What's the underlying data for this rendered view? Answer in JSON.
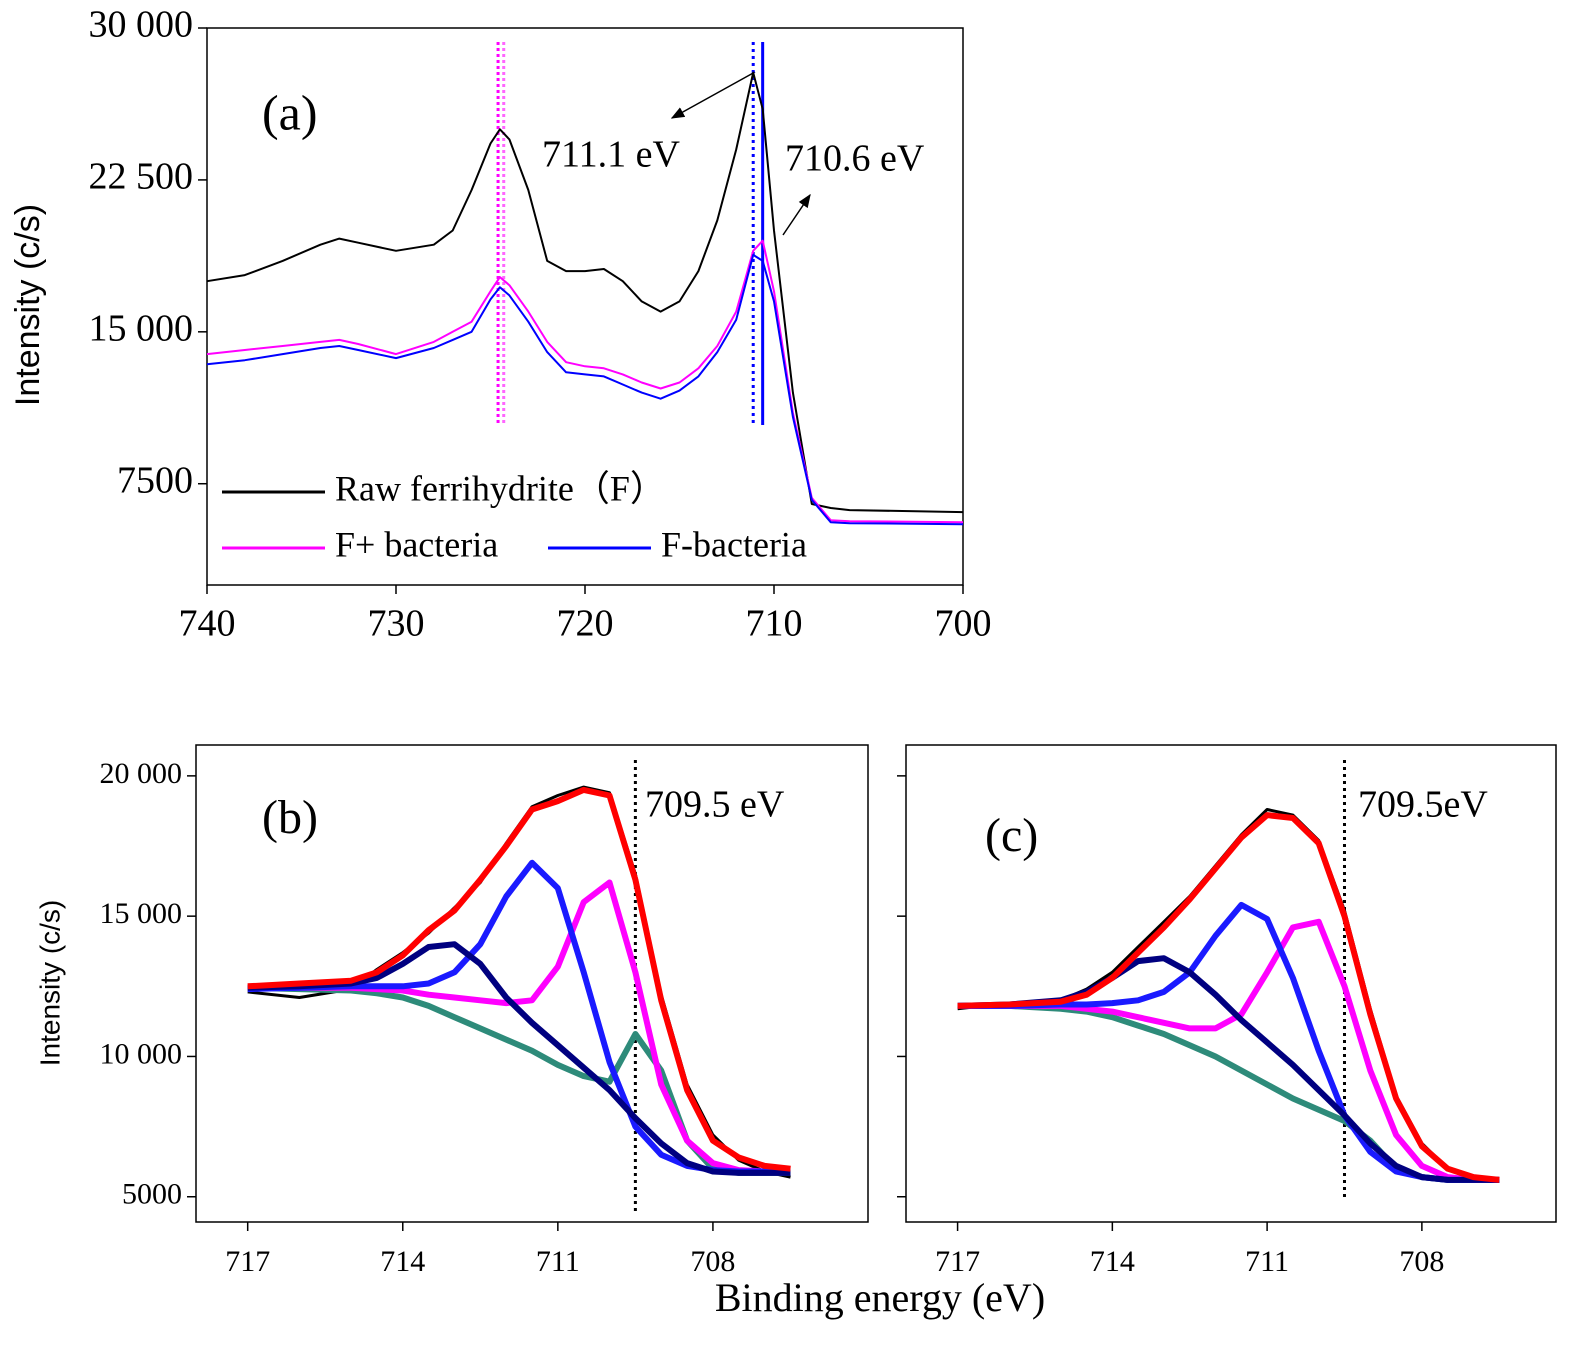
{
  "chart_data": [
    {
      "type": "line",
      "panel_label": "(a)",
      "ylabel": "Intensity (c/s)",
      "xlim": [
        740,
        700
      ],
      "xticks": [
        740,
        730,
        720,
        710,
        700
      ],
      "ylim": [
        2500,
        30000
      ],
      "yticks": [
        {
          "value": 7500,
          "label": "7500"
        },
        {
          "value": 15000,
          "label": "15 000"
        },
        {
          "value": 22500,
          "label": "22 500"
        },
        {
          "value": 30000,
          "label": "30 000"
        }
      ],
      "x": [
        740,
        738,
        736,
        734,
        733,
        732,
        730,
        728,
        727,
        726,
        725,
        724.5,
        724,
        723,
        722,
        721,
        720,
        719,
        718,
        717,
        716,
        715,
        714,
        713,
        712,
        711.1,
        710.6,
        710,
        709,
        708,
        707,
        706,
        700
      ],
      "series": [
        {
          "name": "Raw ferrihydrite（F）",
          "color": "#000000",
          "values": [
            17500,
            17800,
            18500,
            19300,
            19600,
            19400,
            19000,
            19300,
            20000,
            22000,
            24300,
            25000,
            24500,
            22000,
            18500,
            18000,
            18000,
            18100,
            17500,
            16500,
            16000,
            16500,
            18000,
            20500,
            24000,
            27800,
            26000,
            20000,
            12000,
            6500,
            6300,
            6200,
            6100
          ]
        },
        {
          "name": "F+ bacteria",
          "color": "#ff00ff",
          "values": [
            13900,
            14100,
            14300,
            14500,
            14600,
            14400,
            13900,
            14500,
            15000,
            15500,
            17000,
            17700,
            17300,
            16000,
            14500,
            13500,
            13300,
            13200,
            12900,
            12500,
            12200,
            12500,
            13200,
            14300,
            16000,
            19000,
            19500,
            17000,
            11000,
            6800,
            5700,
            5650,
            5600
          ]
        },
        {
          "name": "F-bacteria",
          "color": "#0000ff",
          "values": [
            13400,
            13600,
            13900,
            14200,
            14300,
            14100,
            13700,
            14200,
            14600,
            15000,
            16600,
            17200,
            16800,
            15500,
            14000,
            13000,
            12900,
            12800,
            12400,
            12000,
            11700,
            12100,
            12800,
            14000,
            15600,
            18800,
            18500,
            16500,
            10800,
            6700,
            5600,
            5550,
            5500
          ]
        }
      ],
      "vlines": [
        {
          "x": 724.6,
          "color": "#ff00ff",
          "dash": "3,3"
        },
        {
          "x": 724.3,
          "color": "#ff66ff",
          "dash": "3,3"
        },
        {
          "x": 711.1,
          "color": "#0000ff",
          "dash": "3,4"
        },
        {
          "x": 710.6,
          "color": "#0000ff",
          "dash": "none"
        }
      ],
      "annotations": [
        "711.1 eV",
        "710.6 eV"
      ]
    },
    {
      "type": "line",
      "panel_label": "(b)",
      "ylabel": "Intensity (c/s)",
      "xlabel": "Binding energy (eV)",
      "xlim": [
        718,
        705
      ],
      "xticks": [
        717,
        714,
        711,
        708
      ],
      "ylim": [
        4100,
        21100
      ],
      "yticks": [
        {
          "value": 5000,
          "label": "5000"
        },
        {
          "value": 10000,
          "label": "10 000"
        },
        {
          "value": 15000,
          "label": "15 000"
        },
        {
          "value": 20000,
          "label": "20 000"
        }
      ],
      "x": [
        717,
        716,
        715,
        714.5,
        714,
        713.5,
        713,
        712.5,
        712,
        711.5,
        711,
        710.5,
        710,
        709.5,
        709,
        708.5,
        708,
        707.5,
        707,
        706.5
      ],
      "series": [
        {
          "color": "#000000",
          "values": [
            12300,
            12100,
            12400,
            13100,
            13700,
            14400,
            15300,
            16200,
            17600,
            18900,
            19300,
            19600,
            19400,
            16500,
            12200,
            9000,
            7200,
            6300,
            5900,
            5700
          ]
        },
        {
          "color": "#2e8b7a",
          "values": [
            12450,
            12400,
            12350,
            12250,
            12100,
            11800,
            11400,
            11000,
            10600,
            10200,
            9700,
            9300,
            9100,
            10800,
            9500,
            7000,
            6000,
            5850,
            5850,
            5850
          ]
        },
        {
          "color": "#ff00ff",
          "values": [
            12450,
            12450,
            12450,
            12400,
            12350,
            12200,
            12100,
            12000,
            11900,
            12000,
            13200,
            15500,
            16200,
            13000,
            9000,
            7000,
            6200,
            5950,
            5900,
            5900
          ]
        },
        {
          "color": "#1a1aff",
          "values": [
            12400,
            12450,
            12500,
            12500,
            12500,
            12600,
            13000,
            14000,
            15700,
            16900,
            16000,
            13000,
            9800,
            7500,
            6500,
            6100,
            5950,
            5900,
            5900,
            5900
          ]
        },
        {
          "color": "#000080",
          "values": [
            12450,
            12500,
            12600,
            12800,
            13300,
            13900,
            14000,
            13300,
            12100,
            11200,
            10400,
            9600,
            8800,
            7800,
            6900,
            6200,
            5900,
            5850,
            5850,
            5850
          ]
        },
        {
          "color": "#ff0000",
          "values": [
            12500,
            12600,
            12700,
            13000,
            13600,
            14500,
            15200,
            16300,
            17500,
            18800,
            19100,
            19500,
            19300,
            16300,
            12000,
            8800,
            7000,
            6400,
            6100,
            6000
          ]
        }
      ],
      "vlines": [
        {
          "x": 709.5,
          "color": "#000000",
          "dash": "3,4"
        }
      ],
      "annotations": [
        "709.5 eV"
      ]
    },
    {
      "type": "line",
      "panel_label": "(c)",
      "show_ytick_labels": false,
      "xlim": [
        718,
        705.4
      ],
      "xticks": [
        717,
        714,
        711,
        708
      ],
      "ylim": [
        4100,
        21100
      ],
      "yticks": [
        5000,
        10000,
        15000,
        20000
      ],
      "x": [
        717,
        716,
        715,
        714.5,
        714,
        713.5,
        713,
        712.5,
        712,
        711.5,
        711,
        710.5,
        710,
        709.5,
        709,
        708.5,
        708,
        707.5,
        707,
        706.5
      ],
      "series": [
        {
          "color": "#000000",
          "values": [
            11700,
            11900,
            12000,
            12400,
            13000,
            13900,
            14800,
            15700,
            16800,
            17900,
            18800,
            18600,
            17700,
            15200,
            11700,
            8600,
            6900,
            6000,
            5700,
            5600
          ]
        },
        {
          "color": "#2e8b7a",
          "values": [
            11800,
            11800,
            11700,
            11600,
            11400,
            11100,
            10800,
            10400,
            10000,
            9500,
            9000,
            8500,
            8100,
            7700,
            7000,
            6000,
            5700,
            5600,
            5600,
            5600
          ]
        },
        {
          "color": "#ff00ff",
          "values": [
            11800,
            11800,
            11800,
            11700,
            11600,
            11400,
            11200,
            11000,
            11000,
            11500,
            13000,
            14600,
            14800,
            12500,
            9500,
            7200,
            6100,
            5700,
            5600,
            5600
          ]
        },
        {
          "color": "#1a1aff",
          "values": [
            11800,
            11800,
            11850,
            11850,
            11900,
            12000,
            12300,
            13000,
            14300,
            15400,
            14900,
            12800,
            10200,
            7900,
            6600,
            5900,
            5700,
            5600,
            5600,
            5600
          ]
        },
        {
          "color": "#000080",
          "values": [
            11800,
            11850,
            12000,
            12300,
            12800,
            13400,
            13500,
            13000,
            12200,
            11300,
            10500,
            9700,
            8800,
            7900,
            6900,
            6100,
            5700,
            5600,
            5600,
            5600
          ]
        },
        {
          "color": "#ff0000",
          "values": [
            11800,
            11850,
            11950,
            12200,
            12800,
            13700,
            14600,
            15600,
            16700,
            17800,
            18600,
            18500,
            17600,
            15000,
            11500,
            8500,
            6800,
            6000,
            5700,
            5600
          ]
        }
      ],
      "vlines": [
        {
          "x": 709.5,
          "color": "#000000",
          "dash": "3,4"
        }
      ],
      "annotations": [
        "709.5eV"
      ]
    }
  ]
}
